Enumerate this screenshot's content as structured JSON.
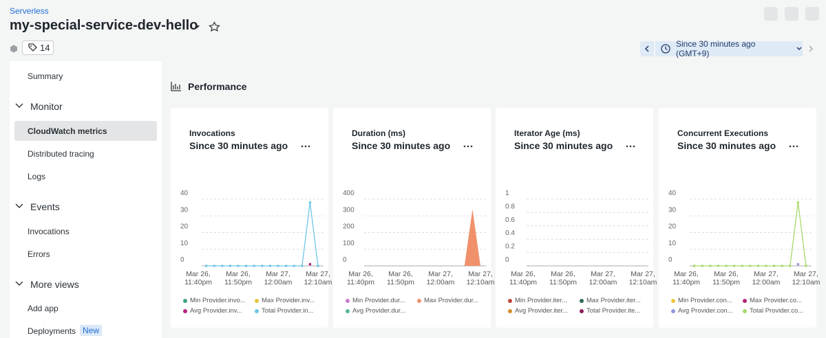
{
  "header": {
    "breadcrumb": "Serverless",
    "title": "my-special-service-dev-hello",
    "tag_count": 14,
    "time_range": "Since 30 minutes ago (GMT+9)"
  },
  "sidebar": {
    "summary": "Summary",
    "groups": [
      {
        "title": "Monitor",
        "items": [
          "CloudWatch metrics",
          "Distributed tracing",
          "Logs"
        ]
      },
      {
        "title": "Events",
        "items": [
          "Invocations",
          "Errors"
        ]
      },
      {
        "title": "More views",
        "items": [
          "Add app",
          "Deployments"
        ]
      }
    ],
    "badge": "New"
  },
  "section_title": "Performance",
  "chart_data": [
    {
      "type": "line",
      "title": "Invocations",
      "subtitle": "Since 30 minutes ago",
      "categories": [
        "Mar 26, 11:40pm",
        null,
        null,
        null,
        null,
        "Mar 26, 11:50pm",
        null,
        null,
        null,
        null,
        "Mar 27, 12:00am",
        null,
        null,
        null,
        null,
        "Mar 27, 12:10am"
      ],
      "ylim": [
        0,
        40
      ],
      "yticks": [
        0,
        10,
        20,
        30,
        40
      ],
      "series": [
        {
          "name": "Min Provider.invo...",
          "color": "#3aa37f",
          "values": [
            null,
            null,
            null,
            null,
            null,
            null,
            null,
            null,
            null,
            null,
            null,
            null,
            null,
            null,
            null,
            null
          ]
        },
        {
          "name": "Max Provider.inv...",
          "color": "#e8c53a",
          "values": [
            null,
            null,
            null,
            null,
            null,
            null,
            null,
            null,
            null,
            null,
            null,
            null,
            null,
            null,
            null,
            null
          ]
        },
        {
          "name": "Avg Provider.inv...",
          "color": "#b5247a",
          "values": [
            null,
            null,
            null,
            null,
            null,
            null,
            null,
            null,
            null,
            null,
            null,
            null,
            null,
            null,
            1,
            null
          ]
        },
        {
          "name": "Total Provider.in...",
          "color": "#6ec6e6",
          "values": [
            null,
            0,
            0,
            0,
            0,
            0,
            0,
            0,
            0,
            0,
            0,
            0,
            0,
            0,
            38,
            0
          ]
        }
      ]
    },
    {
      "type": "area",
      "title": "Duration (ms)",
      "subtitle": "Since 30 minutes ago",
      "categories": [
        "Mar 26, 11:40pm",
        null,
        null,
        null,
        null,
        "Mar 26, 11:50pm",
        null,
        null,
        null,
        null,
        "Mar 27, 12:00am",
        null,
        null,
        null,
        null,
        "Mar 27, 12:10am"
      ],
      "ylim": [
        0,
        400
      ],
      "yticks": [
        0,
        100,
        200,
        300,
        400
      ],
      "series": [
        {
          "name": "Min Provider.dur...",
          "color": "#c77dd1",
          "values": [
            null,
            null,
            null,
            null,
            null,
            null,
            null,
            null,
            null,
            null,
            null,
            null,
            null,
            null,
            null,
            null
          ]
        },
        {
          "name": "Max Provider.dur...",
          "color": "#f0916b",
          "values": [
            null,
            null,
            null,
            null,
            null,
            null,
            null,
            null,
            null,
            null,
            null,
            null,
            null,
            0,
            340,
            0
          ]
        },
        {
          "name": "Avg Provider.dur...",
          "color": "#55b88f",
          "values": [
            null,
            null,
            null,
            null,
            null,
            null,
            null,
            null,
            null,
            null,
            null,
            null,
            null,
            null,
            null,
            null
          ]
        }
      ]
    },
    {
      "type": "line",
      "title": "Iterator Age (ms)",
      "subtitle": "Since 30 minutes ago",
      "categories": [
        "Mar 26, 11:40pm",
        null,
        null,
        null,
        null,
        "Mar 26, 11:50pm",
        null,
        null,
        null,
        null,
        "Mar 27, 12:00am",
        null,
        null,
        null,
        null,
        "Mar 27, 12:10am"
      ],
      "ylim": [
        0,
        1
      ],
      "yticks": [
        0,
        0.2,
        0.4,
        0.6,
        0.8,
        1
      ],
      "series": [
        {
          "name": "Min Provider.iter...",
          "color": "#c0463d",
          "values": [
            null,
            null,
            null,
            null,
            null,
            null,
            null,
            null,
            null,
            null,
            null,
            null,
            null,
            null,
            null,
            null
          ]
        },
        {
          "name": "Max Provider.iter...",
          "color": "#2e6b57",
          "values": [
            null,
            null,
            null,
            null,
            null,
            null,
            null,
            null,
            null,
            null,
            null,
            null,
            null,
            null,
            null,
            null
          ]
        },
        {
          "name": "Avg Provider.iter...",
          "color": "#d48c28",
          "values": [
            null,
            null,
            null,
            null,
            null,
            null,
            null,
            null,
            null,
            null,
            null,
            null,
            null,
            null,
            null,
            null
          ]
        },
        {
          "name": "Total Provider.ite...",
          "color": "#8b1e5c",
          "values": [
            null,
            null,
            null,
            null,
            null,
            null,
            null,
            null,
            null,
            null,
            null,
            null,
            null,
            null,
            null,
            null
          ]
        }
      ]
    },
    {
      "type": "line",
      "title": "Concurrent Executions",
      "subtitle": "Since 30 minutes ago",
      "categories": [
        "Mar 26, 11:40pm",
        null,
        null,
        null,
        null,
        "Mar 26, 11:50pm",
        null,
        null,
        null,
        null,
        "Mar 27, 12:00am",
        null,
        null,
        null,
        null,
        "Mar 27, 12:10am"
      ],
      "ylim": [
        0,
        40
      ],
      "yticks": [
        0,
        10,
        20,
        30,
        40
      ],
      "series": [
        {
          "name": "Min Provider.con...",
          "color": "#f2c53d",
          "values": [
            null,
            null,
            null,
            null,
            null,
            null,
            null,
            null,
            null,
            null,
            null,
            null,
            null,
            null,
            null,
            null
          ]
        },
        {
          "name": "Max Provider.co...",
          "color": "#b5247a",
          "values": [
            null,
            null,
            null,
            null,
            null,
            null,
            null,
            null,
            null,
            null,
            null,
            null,
            null,
            null,
            null,
            null
          ]
        },
        {
          "name": "Avg Provider.con...",
          "color": "#8f9ae0",
          "values": [
            null,
            null,
            null,
            null,
            null,
            null,
            null,
            null,
            null,
            null,
            null,
            null,
            null,
            null,
            1,
            null
          ]
        },
        {
          "name": "Total Provider.co...",
          "color": "#a6d96a",
          "values": [
            null,
            0,
            0,
            0,
            0,
            0,
            0,
            0,
            0,
            0,
            0,
            0,
            0,
            0,
            38,
            0
          ]
        }
      ]
    }
  ]
}
